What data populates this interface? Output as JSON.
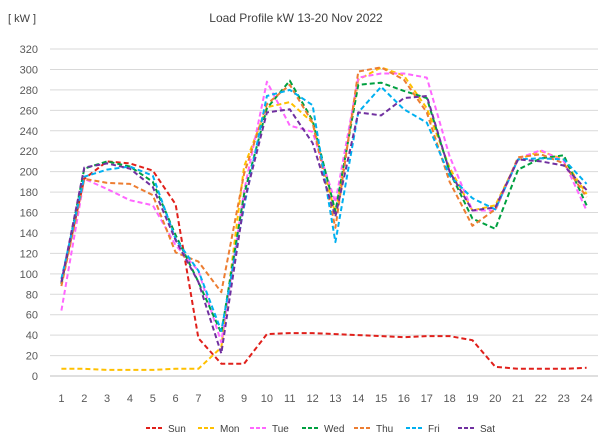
{
  "chart_data": {
    "type": "line",
    "title": "Load Profile kW 13-20 Nov 2022",
    "unit_label": "[ kW ]",
    "ylim": [
      0,
      320
    ],
    "yticks": [
      0,
      20,
      40,
      60,
      80,
      100,
      120,
      140,
      160,
      180,
      200,
      220,
      240,
      260,
      280,
      300,
      320
    ],
    "x": [
      "1",
      "2",
      "3",
      "4",
      "5",
      "6",
      "7",
      "8",
      "9",
      "10",
      "11",
      "12",
      "13",
      "14",
      "15",
      "16",
      "17",
      "18",
      "19",
      "20",
      "21",
      "22",
      "23",
      "24"
    ],
    "grid": "horizontal",
    "legend_position": "bottom",
    "line_style": "dashed",
    "series": [
      {
        "name": "Sun",
        "color": "#e0201b",
        "values": [
          91,
          193,
          210,
          208,
          201,
          168,
          37,
          12,
          12,
          41,
          42,
          42,
          41,
          40,
          39,
          38,
          39,
          39,
          35,
          9,
          7,
          7,
          7,
          8
        ]
      },
      {
        "name": "Mon",
        "color": "#ffc000",
        "values": [
          7,
          7,
          6,
          6,
          6,
          7,
          7,
          28,
          205,
          263,
          268,
          248,
          158,
          290,
          302,
          294,
          262,
          204,
          162,
          167,
          212,
          220,
          212,
          178
        ]
      },
      {
        "name": "Tue",
        "color": "#ff66ff",
        "values": [
          64,
          193,
          183,
          172,
          167,
          128,
          103,
          33,
          181,
          288,
          245,
          239,
          170,
          292,
          296,
          296,
          292,
          215,
          162,
          162,
          213,
          221,
          210,
          162
        ]
      },
      {
        "name": "Wed",
        "color": "#00a040",
        "values": [
          90,
          203,
          210,
          205,
          190,
          138,
          92,
          42,
          178,
          262,
          289,
          250,
          161,
          285,
          287,
          279,
          272,
          200,
          154,
          144,
          202,
          213,
          216,
          167
        ]
      },
      {
        "name": "Thu",
        "color": "#ed7d31",
        "values": [
          88,
          193,
          189,
          188,
          177,
          121,
          112,
          82,
          198,
          266,
          285,
          248,
          145,
          298,
          302,
          290,
          258,
          190,
          147,
          163,
          214,
          217,
          208,
          175
        ]
      },
      {
        "name": "Fri",
        "color": "#00b0f0",
        "values": [
          95,
          195,
          202,
          205,
          196,
          134,
          103,
          44,
          166,
          274,
          280,
          265,
          131,
          258,
          283,
          261,
          248,
          196,
          174,
          163,
          212,
          213,
          212,
          188
        ]
      },
      {
        "name": "Sat",
        "color": "#7030a0",
        "values": [
          92,
          204,
          208,
          203,
          185,
          133,
          92,
          22,
          170,
          258,
          261,
          228,
          156,
          258,
          255,
          272,
          274,
          200,
          162,
          165,
          212,
          210,
          206,
          182
        ]
      }
    ]
  }
}
